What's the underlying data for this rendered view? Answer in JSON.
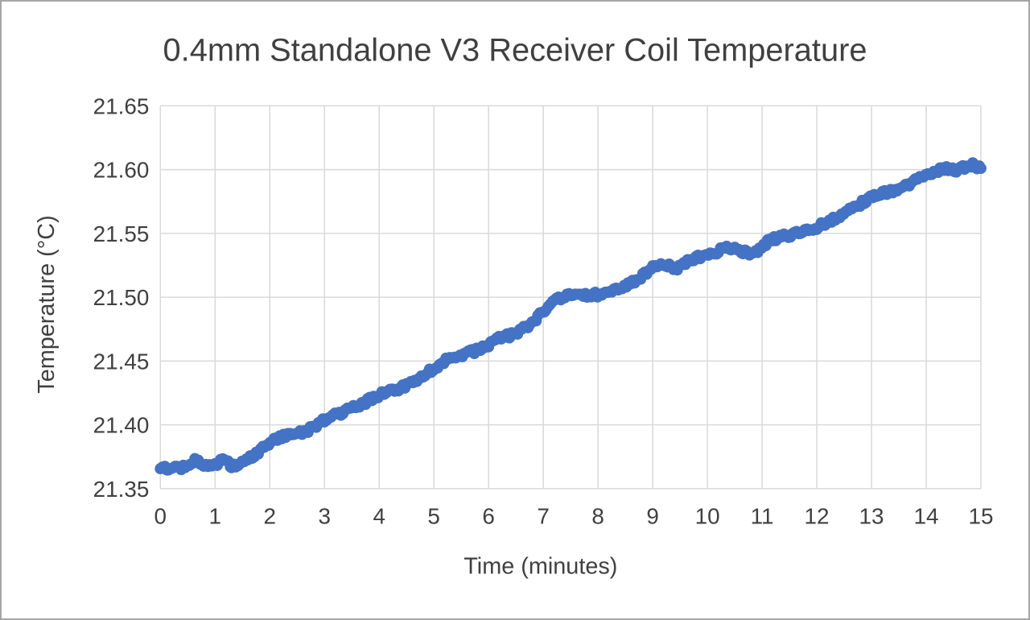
{
  "chart_data": {
    "type": "scatter",
    "title": "0.4mm Standalone V3 Receiver Coil Temperature",
    "xlabel": "Time (minutes)",
    "ylabel": "Temperature (°C)",
    "xlim": [
      0,
      15
    ],
    "ylim": [
      21.35,
      21.65
    ],
    "x_ticks": [
      0,
      1,
      2,
      3,
      4,
      5,
      6,
      7,
      8,
      9,
      10,
      11,
      12,
      13,
      14,
      15
    ],
    "y_ticks": [
      21.35,
      21.4,
      21.45,
      21.5,
      21.55,
      21.6,
      21.65
    ],
    "grid": true,
    "legend": "none",
    "styles": {
      "text_color": "#404040",
      "grid_color": "#d9d9d9",
      "border_color": "#a6a6a6",
      "background": "#ffffff"
    },
    "series": [
      {
        "marker": {
          "color": "#4472c4",
          "radius": 7
        },
        "sampling": {
          "step": 0.04,
          "noise_y": 0.002,
          "seed": 7
        },
        "trend_points": [
          [
            0.0,
            21.366
          ],
          [
            0.15,
            21.366
          ],
          [
            0.3,
            21.366
          ],
          [
            0.45,
            21.367
          ],
          [
            0.55,
            21.371
          ],
          [
            0.65,
            21.373
          ],
          [
            0.75,
            21.369
          ],
          [
            0.9,
            21.367
          ],
          [
            1.0,
            21.369
          ],
          [
            1.1,
            21.372
          ],
          [
            1.2,
            21.371
          ],
          [
            1.3,
            21.368
          ],
          [
            1.45,
            21.369
          ],
          [
            1.6,
            21.373
          ],
          [
            1.75,
            21.377
          ],
          [
            1.9,
            21.382
          ],
          [
            2.0,
            21.386
          ],
          [
            2.1,
            21.389
          ],
          [
            2.25,
            21.391
          ],
          [
            2.4,
            21.392
          ],
          [
            2.55,
            21.394
          ],
          [
            2.7,
            21.396
          ],
          [
            2.85,
            21.4
          ],
          [
            3.0,
            21.404
          ],
          [
            3.15,
            21.407
          ],
          [
            3.3,
            21.409
          ],
          [
            3.45,
            21.412
          ],
          [
            3.6,
            21.415
          ],
          [
            3.75,
            21.418
          ],
          [
            3.9,
            21.421
          ],
          [
            4.05,
            21.424
          ],
          [
            4.2,
            21.427
          ],
          [
            4.35,
            21.428
          ],
          [
            4.5,
            21.431
          ],
          [
            4.65,
            21.434
          ],
          [
            4.8,
            21.439
          ],
          [
            4.95,
            21.443
          ],
          [
            5.1,
            21.447
          ],
          [
            5.25,
            21.451
          ],
          [
            5.4,
            21.453
          ],
          [
            5.55,
            21.455
          ],
          [
            5.7,
            21.457
          ],
          [
            5.85,
            21.46
          ],
          [
            6.0,
            21.463
          ],
          [
            6.15,
            21.467
          ],
          [
            6.3,
            21.469
          ],
          [
            6.45,
            21.471
          ],
          [
            6.6,
            21.474
          ],
          [
            6.75,
            21.478
          ],
          [
            6.9,
            21.484
          ],
          [
            7.05,
            21.491
          ],
          [
            7.2,
            21.497
          ],
          [
            7.35,
            21.5
          ],
          [
            7.5,
            21.501
          ],
          [
            7.65,
            21.501
          ],
          [
            7.8,
            21.501
          ],
          [
            7.95,
            21.502
          ],
          [
            8.1,
            21.502
          ],
          [
            8.25,
            21.504
          ],
          [
            8.4,
            21.507
          ],
          [
            8.55,
            21.51
          ],
          [
            8.7,
            21.513
          ],
          [
            8.85,
            21.518
          ],
          [
            9.0,
            21.523
          ],
          [
            9.15,
            21.526
          ],
          [
            9.3,
            21.524
          ],
          [
            9.45,
            21.522
          ],
          [
            9.6,
            21.527
          ],
          [
            9.75,
            21.53
          ],
          [
            9.9,
            21.532
          ],
          [
            10.05,
            21.535
          ],
          [
            10.2,
            21.536
          ],
          [
            10.35,
            21.538
          ],
          [
            10.5,
            21.538
          ],
          [
            10.65,
            21.536
          ],
          [
            10.8,
            21.533
          ],
          [
            10.95,
            21.538
          ],
          [
            11.1,
            21.543
          ],
          [
            11.25,
            21.546
          ],
          [
            11.4,
            21.548
          ],
          [
            11.55,
            21.549
          ],
          [
            11.7,
            21.55
          ],
          [
            11.85,
            21.552
          ],
          [
            12.0,
            21.555
          ],
          [
            12.15,
            21.558
          ],
          [
            12.3,
            21.561
          ],
          [
            12.45,
            21.564
          ],
          [
            12.6,
            21.568
          ],
          [
            12.75,
            21.572
          ],
          [
            12.9,
            21.576
          ],
          [
            13.05,
            21.579
          ],
          [
            13.2,
            21.581
          ],
          [
            13.35,
            21.583
          ],
          [
            13.5,
            21.585
          ],
          [
            13.65,
            21.588
          ],
          [
            13.8,
            21.592
          ],
          [
            13.95,
            21.596
          ],
          [
            14.1,
            21.598
          ],
          [
            14.25,
            21.6
          ],
          [
            14.4,
            21.601
          ],
          [
            14.55,
            21.6
          ],
          [
            14.7,
            21.602
          ],
          [
            14.85,
            21.604
          ],
          [
            15.0,
            21.601
          ]
        ]
      }
    ]
  }
}
